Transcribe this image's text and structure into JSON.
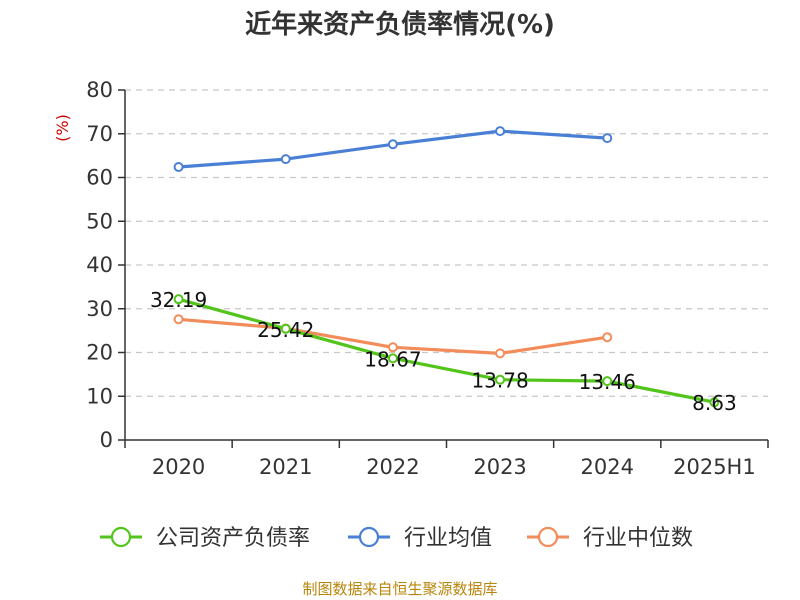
{
  "title": "近年来资产负债率情况(%)",
  "source": "制图数据来自恒生聚源数据库",
  "chart_data": {
    "type": "line",
    "title": "近年来资产负债率情况(%)",
    "ylabel": "(%)",
    "categories": [
      "2020",
      "2021",
      "2022",
      "2023",
      "2024",
      "2025H1"
    ],
    "ylim": [
      0,
      80
    ],
    "yticks": [
      0,
      10,
      20,
      30,
      40,
      50,
      60,
      70,
      80
    ],
    "grid": true,
    "legend": "bottom",
    "series": [
      {
        "name": "公司资产负债率",
        "color": "#52c41a",
        "values": [
          32.19,
          25.42,
          18.67,
          13.78,
          13.46,
          8.63
        ],
        "labels": [
          "32.19",
          "25.42",
          "18.67",
          "13.78",
          "13.46",
          "8.63"
        ]
      },
      {
        "name": "行业均值",
        "color": "#4a7fd6",
        "values": [
          62.4,
          64.2,
          67.6,
          70.6,
          69.0,
          null
        ]
      },
      {
        "name": "行业中位数",
        "color": "#f28c5a",
        "values": [
          27.6,
          25.5,
          21.2,
          19.8,
          23.5,
          null
        ]
      }
    ]
  }
}
